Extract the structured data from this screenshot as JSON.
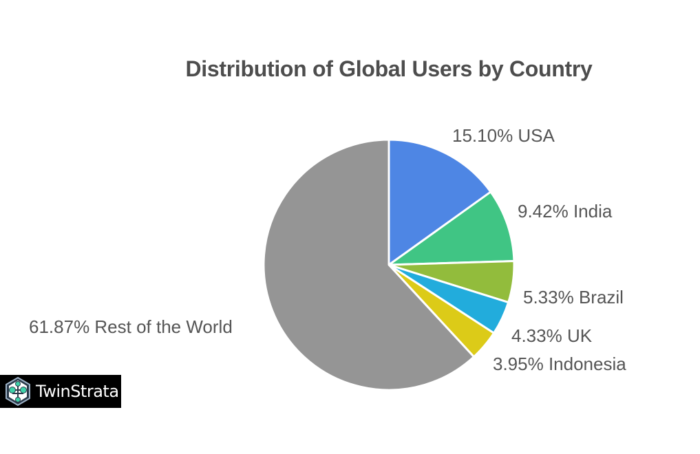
{
  "chart_data": {
    "type": "pie",
    "title": "Distribution of Global Users by Country",
    "start_angle_deg": 0,
    "direction": "clockwise",
    "slices": [
      {
        "label": "USA",
        "value": 15.1,
        "display": "15.10% USA",
        "color": "#4e86e4"
      },
      {
        "label": "India",
        "value": 9.42,
        "display": "9.42% India",
        "color": "#40c584"
      },
      {
        "label": "Brazil",
        "value": 5.33,
        "display": "5.33% Brazil",
        "color": "#92bc3c"
      },
      {
        "label": "UK",
        "value": 4.33,
        "display": "4.33% UK",
        "color": "#22acdc"
      },
      {
        "label": "Indonesia",
        "value": 3.95,
        "display": "3.95% Indonesia",
        "color": "#dccb18"
      },
      {
        "label": "Rest of the World",
        "value": 61.87,
        "display": "61.87% Rest of the World",
        "color": "#959595"
      }
    ],
    "legend": "none (labels beside slices)"
  },
  "title": "Distribution of Global Users by Country",
  "labels": {
    "usa": "15.10% USA",
    "india": "9.42% India",
    "brazil": "5.33% Brazil",
    "uk": "4.33% UK",
    "indonesia": "3.95% Indonesia",
    "rest": "61.87% Rest of the World"
  },
  "logo": {
    "text": "TwinStrata"
  }
}
